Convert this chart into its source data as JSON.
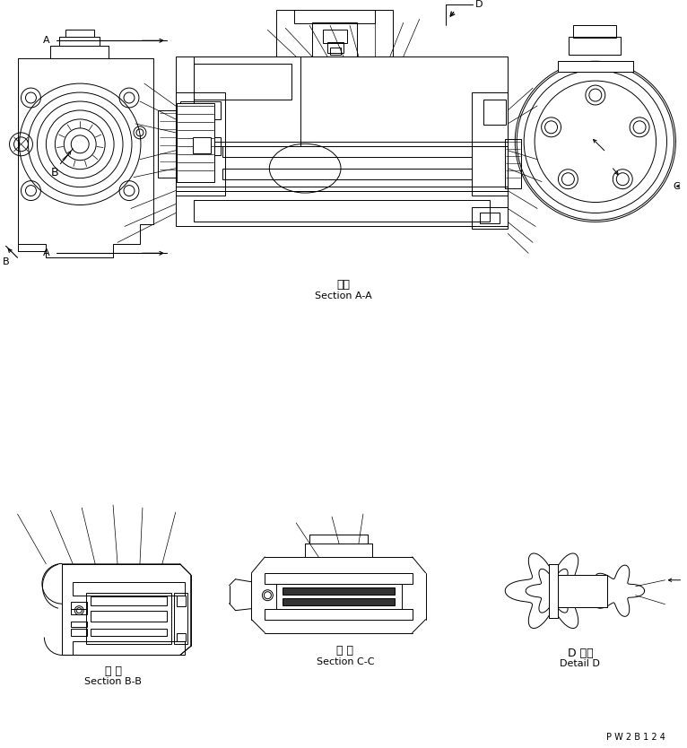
{
  "bg_color": "#ffffff",
  "line_color": "#000000",
  "fig_width": 7.66,
  "fig_height": 8.34,
  "dpi": 100,
  "watermark": "P W 2 B 1 2 4",
  "section_aa_label_ja": "断面",
  "section_aa_label_en": "Section A-A",
  "section_bb_label_ja": "断 面",
  "section_bb_label_en": "Section B-B",
  "section_cc_label_ja": "断 面",
  "section_cc_label_en": "Section C-C",
  "detail_d_label_ja": "D 詳細",
  "detail_d_label_en": "Detail D"
}
